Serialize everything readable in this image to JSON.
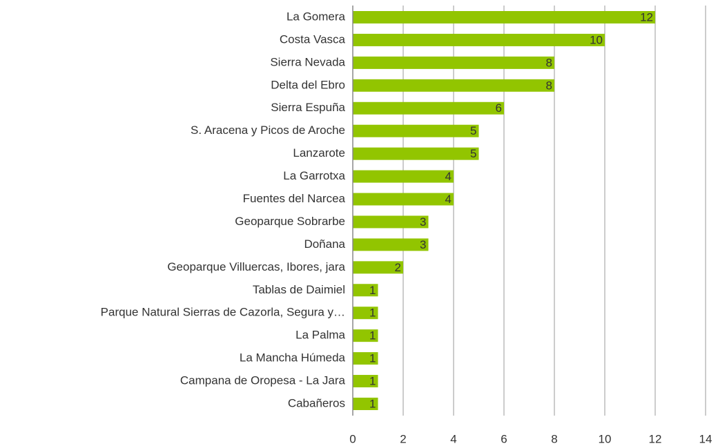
{
  "chart_data": {
    "type": "barh",
    "categories": [
      "La Gomera",
      "Costa Vasca",
      "Sierra Nevada",
      "Delta del Ebro",
      "Sierra Espuña",
      "S. Aracena y Picos de Aroche",
      "Lanzarote",
      "La Garrotxa",
      "Fuentes del Narcea",
      "Geoparque Sobrarbe",
      "Doñana",
      "Geoparque Villuercas, Ibores, jara",
      "Tablas de Daimiel",
      "Parque Natural Sierras de Cazorla, Segura y…",
      "La Palma",
      "La Mancha Húmeda",
      "Campana de Oropesa - La Jara",
      "Cabañeros"
    ],
    "values": [
      12,
      10,
      8,
      8,
      6,
      5,
      5,
      4,
      4,
      3,
      3,
      2,
      1,
      1,
      1,
      1,
      1,
      1
    ],
    "color": "#92c500",
    "xlim": [
      0,
      14
    ],
    "xticks": [
      0,
      2,
      4,
      6,
      8,
      10,
      12,
      14
    ],
    "grid": true
  }
}
